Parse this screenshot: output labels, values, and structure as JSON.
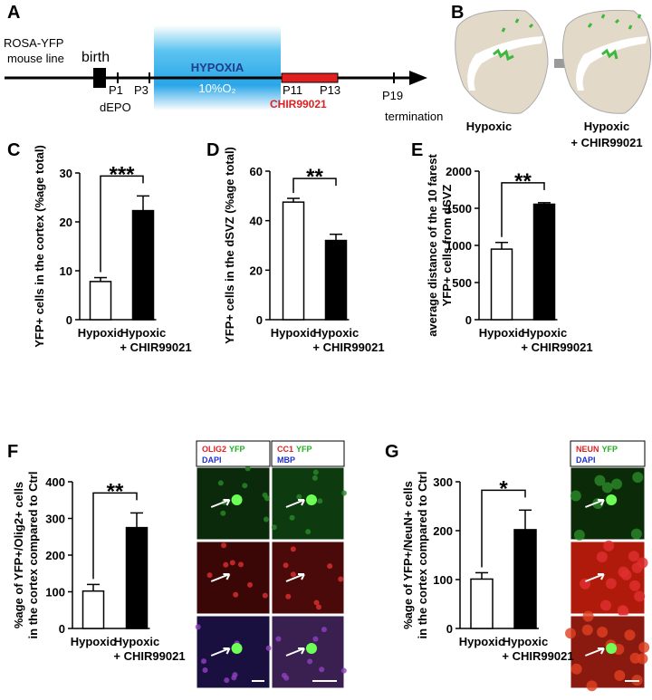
{
  "panel_a": {
    "panel": "A",
    "line_name": [
      "ROSA-YFP",
      "mouse line"
    ],
    "birth": "birth",
    "p1": "P1",
    "p3": "P3",
    "depo": "dEPO",
    "hypoxia": "HYPOXIA",
    "oxygen": "10%O₂",
    "p11": "P11",
    "p13": "P13",
    "drug": "CHIR99021",
    "p19": "P19",
    "termination": "termination"
  },
  "panel_b": {
    "panel": "B",
    "left": "Hypoxic",
    "right": [
      "Hypoxic",
      "+ CHIR99021"
    ]
  },
  "micrographs": {
    "f_headers": [
      {
        "line1": [
          "OLIG2",
          "YFP"
        ],
        "line2": [
          "DAPI"
        ]
      },
      {
        "line1": [
          "CC1",
          "YFP"
        ],
        "line2": [
          "MBP"
        ]
      }
    ],
    "g_headers": [
      {
        "line1": [
          "NEUN",
          "YFP"
        ],
        "line2": [
          "DAPI"
        ]
      }
    ]
  },
  "chart_data": [
    {
      "type": "bar",
      "panel": "C",
      "ylabel": "YFP+ cells in the cortex (%age total)",
      "categories": [
        "Hypoxic",
        "Hypoxic\n+ CHIR99021"
      ],
      "series": [
        {
          "values": [
            7.8,
            22.3
          ],
          "errors": [
            0.8,
            3.0
          ],
          "colors": [
            "#ffffff",
            "#000000"
          ]
        }
      ],
      "ylim": [
        0,
        30
      ],
      "yticks": [
        0,
        10,
        20,
        30
      ],
      "significance": "***"
    },
    {
      "type": "bar",
      "panel": "D",
      "ylabel": "YFP+ cells in the dSVZ (%age total)",
      "categories": [
        "Hypoxic",
        "Hypoxic\n+ CHIR99021"
      ],
      "series": [
        {
          "values": [
            47.5,
            32.0
          ],
          "errors": [
            1.5,
            2.5
          ],
          "colors": [
            "#ffffff",
            "#000000"
          ]
        }
      ],
      "ylim": [
        0,
        60
      ],
      "yticks": [
        0,
        20,
        40,
        60
      ],
      "significance": "**"
    },
    {
      "type": "bar",
      "panel": "E",
      "ylabel": "average distance of the 10 farest\nYFP+ cells from dSVZ",
      "categories": [
        "Hypoxic",
        "Hypoxic\n+ CHIR99021"
      ],
      "series": [
        {
          "values": [
            950,
            1555
          ],
          "errors": [
            90,
            20
          ],
          "colors": [
            "#ffffff",
            "#000000"
          ]
        }
      ],
      "ylim": [
        0,
        2000
      ],
      "yticks": [
        0,
        500,
        1000,
        1500,
        2000
      ],
      "significance": "**"
    },
    {
      "type": "bar",
      "panel": "F",
      "ylabel": "%age of YFP+/Olig2+ cells\nin the cortex compared to Ctrl",
      "categories": [
        "Hypoxic",
        "Hypoxic\n+ CHIR99021"
      ],
      "series": [
        {
          "values": [
            102,
            275
          ],
          "errors": [
            18,
            40
          ],
          "colors": [
            "#ffffff",
            "#000000"
          ]
        }
      ],
      "ylim": [
        0,
        400
      ],
      "yticks": [
        0,
        100,
        200,
        300,
        400
      ],
      "significance": "**"
    },
    {
      "type": "bar",
      "panel": "G",
      "ylabel": "%age of YFP+/NeuN+ cells\nin the cortex compared to Ctrl",
      "categories": [
        "Hypoxic",
        "Hypoxic\n+ CHIR99021"
      ],
      "series": [
        {
          "values": [
            101,
            202
          ],
          "errors": [
            13,
            40
          ],
          "colors": [
            "#ffffff",
            "#000000"
          ]
        }
      ],
      "ylim": [
        0,
        300
      ],
      "yticks": [
        0,
        100,
        200,
        300
      ],
      "significance": "*"
    }
  ]
}
